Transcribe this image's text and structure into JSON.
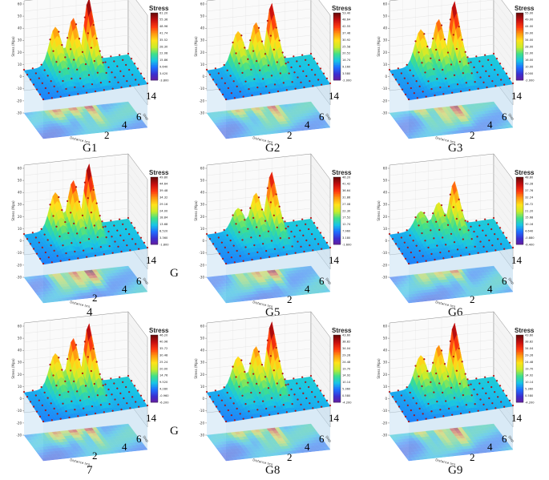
{
  "figure": {
    "colorbar_title": "Stress",
    "z_axis_label": "Stress (Mpa)",
    "x_axis_label": "Distance (m)",
    "y_axis_label": "Step",
    "z_ticks": [
      "60",
      "50",
      "40",
      "30",
      "20",
      "10",
      "0",
      "-10",
      "-20",
      "-30"
    ],
    "depth_ticks": [
      "14",
      "6",
      "4",
      "2"
    ],
    "colors": [
      "#6a1a9a",
      "#3b2fd0",
      "#1f6fff",
      "#18c4e6",
      "#3fe08a",
      "#c8ec2a",
      "#ffe21a",
      "#ff9a10",
      "#ff3a10",
      "#c80f0f",
      "#6e0a0a"
    ]
  },
  "panels": [
    {
      "id": "G1",
      "caption": "G1",
      "peaks": [
        0.62,
        0.72,
        1.0
      ],
      "cb_ticks": [
        "61.20",
        "55.36",
        "48.96",
        "41.74",
        "35.52",
        "28.30",
        "22.08",
        "15.86",
        "9.640",
        "3.420",
        "-3.800"
      ]
    },
    {
      "id": "G2",
      "caption": "G2",
      "peaks": [
        0.55,
        0.65,
        0.92
      ],
      "cb_ticks": [
        "53.40",
        "48.64",
        "42.55",
        "37.46",
        "30.92",
        "25.58",
        "20.52",
        "14.74",
        "9.160",
        "3.580",
        "-2.000"
      ]
    },
    {
      "id": "G3",
      "caption": "G3",
      "peaks": [
        0.58,
        0.7,
        0.95
      ],
      "cb_ticks": [
        "55.00",
        "49.00",
        "44.00",
        "39.00",
        "34.00",
        "28.00",
        "22.00",
        "16.00",
        "10.00",
        "4.000",
        "-2.000"
      ]
    },
    {
      "id": "G4",
      "caption": "G",
      "caption_num": "4",
      "peaks": [
        0.6,
        0.75,
        0.98
      ],
      "cb_ticks": [
        "49.80",
        "44.64",
        "39.48",
        "34.32",
        "29.16",
        "24.00",
        "18.84",
        "13.68",
        "8.520",
        "3.360",
        "-1.800"
      ]
    },
    {
      "id": "G5",
      "caption": "G5",
      "peaks": [
        0.35,
        0.55,
        0.85
      ],
      "cb_ticks": [
        "46.20",
        "41.42",
        "36.64",
        "31.86",
        "27.08",
        "22.30",
        "17.52",
        "12.74",
        "7.960",
        "3.180",
        "-1.600"
      ]
    },
    {
      "id": "G6",
      "caption": "G6",
      "peaks": [
        0.3,
        0.4,
        0.7
      ],
      "cb_ticks": [
        "48.80",
        "43.28",
        "37.76",
        "32.24",
        "26.72",
        "21.20",
        "15.68",
        "10.16",
        "4.640",
        "-0.880",
        "-6.400"
      ]
    },
    {
      "id": "G7",
      "caption": "G",
      "caption_num": "7",
      "peaks": [
        0.55,
        0.75,
        0.95
      ],
      "cb_ticks": [
        "46.20",
        "40.96",
        "35.72",
        "30.48",
        "25.24",
        "20.00",
        "14.76",
        "9.520",
        "4.280",
        "-0.960",
        "-6.200"
      ]
    },
    {
      "id": "G8",
      "caption": "G8",
      "peaks": [
        0.5,
        0.62,
        0.98
      ],
      "cb_ticks": [
        "43.60",
        "38.82",
        "34.04",
        "29.26",
        "24.48",
        "19.70",
        "14.92",
        "10.14",
        "5.360",
        "0.580",
        "-4.200"
      ]
    },
    {
      "id": "G9",
      "caption": "G9",
      "peaks": [
        0.52,
        0.64,
        0.96
      ],
      "cb_ticks": [
        "43.60",
        "38.82",
        "34.04",
        "29.26",
        "24.48",
        "19.70",
        "14.92",
        "10.14",
        "5.360",
        "0.580",
        "-4.200"
      ]
    }
  ]
}
